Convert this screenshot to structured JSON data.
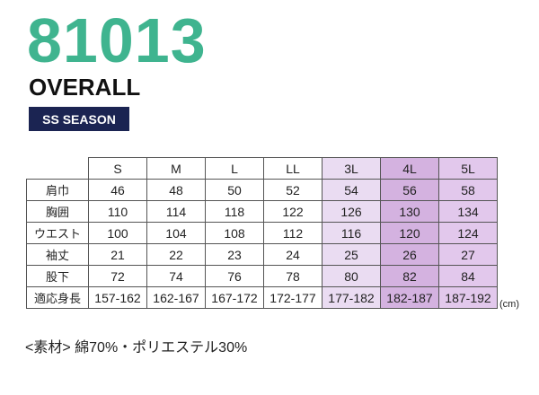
{
  "product": {
    "code": "81013",
    "name": "OVERALL",
    "season": "SS SEASON"
  },
  "size_table": {
    "columns": [
      "S",
      "M",
      "L",
      "LL",
      "3L",
      "4L",
      "5L"
    ],
    "rows": [
      {
        "label": "肩巾",
        "values": [
          "46",
          "48",
          "50",
          "52",
          "54",
          "56",
          "58"
        ]
      },
      {
        "label": "胸囲",
        "values": [
          "110",
          "114",
          "118",
          "122",
          "126",
          "130",
          "134"
        ]
      },
      {
        "label": "ウエスト",
        "values": [
          "100",
          "104",
          "108",
          "112",
          "116",
          "120",
          "124"
        ]
      },
      {
        "label": "袖丈",
        "values": [
          "21",
          "22",
          "23",
          "24",
          "25",
          "26",
          "27"
        ]
      },
      {
        "label": "股下",
        "values": [
          "72",
          "74",
          "76",
          "78",
          "80",
          "82",
          "84"
        ]
      },
      {
        "label": "適応身長",
        "values": [
          "157-162",
          "162-167",
          "167-172",
          "172-177",
          "177-182",
          "182-187",
          "187-192"
        ]
      }
    ],
    "unit": "(cm)",
    "column_fills": [
      "#ffffff",
      "#ffffff",
      "#ffffff",
      "#ffffff",
      "#eadcf2",
      "#d4b2e0",
      "#e2c8ec"
    ]
  },
  "material": {
    "label": "<素材>",
    "value": "綿70%・ポリエステル30%"
  }
}
